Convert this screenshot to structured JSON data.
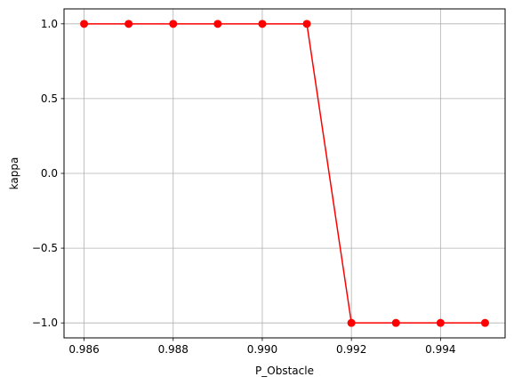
{
  "chart_data": {
    "type": "line",
    "title": "",
    "xlabel": "P_Obstacle",
    "ylabel": "kappa",
    "x": [
      0.986,
      0.987,
      0.988,
      0.989,
      0.99,
      0.991,
      0.992,
      0.993,
      0.994,
      0.995
    ],
    "series": [
      {
        "values": [
          1.0,
          1.0,
          1.0,
          1.0,
          1.0,
          1.0,
          -1.0,
          -1.0,
          -1.0,
          -1.0
        ],
        "color": "#ff0000",
        "marker": "circle"
      }
    ],
    "xlim": [
      0.98555,
      0.99545
    ],
    "ylim": [
      -1.1,
      1.1
    ],
    "xticks": [
      0.986,
      0.988,
      0.99,
      0.992,
      0.994
    ],
    "xtick_labels": [
      "0.986",
      "0.988",
      "0.990",
      "0.992",
      "0.994"
    ],
    "yticks": [
      1.0,
      0.5,
      0.0,
      -0.5,
      -1.0
    ],
    "ytick_labels": [
      "1.0",
      "0.5",
      "0.0",
      "−0.5",
      "−1.0"
    ],
    "grid": true,
    "legend": "none"
  }
}
